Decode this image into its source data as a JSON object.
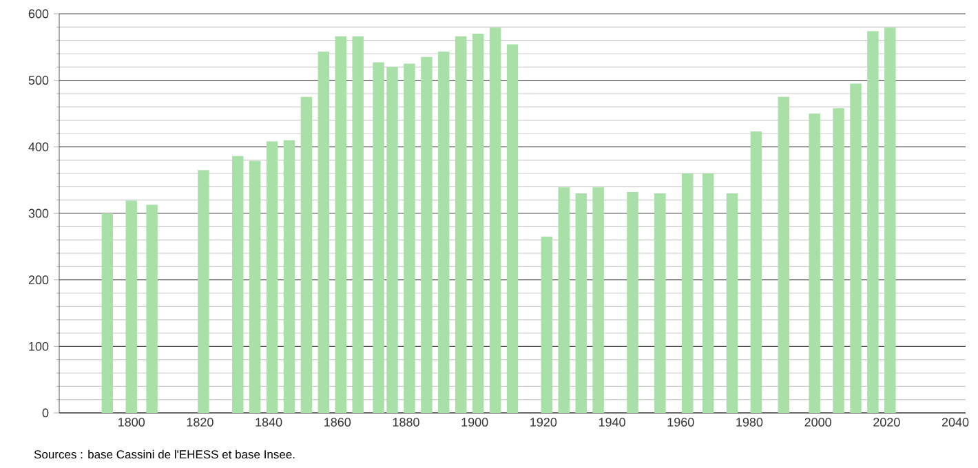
{
  "chart_data": {
    "type": "bar",
    "x": [
      1793,
      1800,
      1806,
      1821,
      1831,
      1836,
      1841,
      1846,
      1851,
      1856,
      1861,
      1866,
      1872,
      1876,
      1881,
      1886,
      1891,
      1896,
      1901,
      1906,
      1911,
      1921,
      1926,
      1931,
      1936,
      1946,
      1954,
      1962,
      1968,
      1975,
      1982,
      1990,
      1999,
      2006,
      2011,
      2016,
      2021
    ],
    "values": [
      300,
      319,
      313,
      365,
      386,
      379,
      408,
      410,
      475,
      543,
      566,
      566,
      527,
      520,
      525,
      535,
      543,
      566,
      570,
      579,
      554,
      265,
      339,
      330,
      339,
      332,
      330,
      360,
      360,
      330,
      423,
      475,
      450,
      458,
      495,
      574,
      579
    ],
    "color": "#a8e0a8",
    "xlim": [
      1779,
      2043
    ],
    "xticks": [
      1800,
      1820,
      1840,
      1860,
      1880,
      1900,
      1920,
      1940,
      1960,
      1980,
      2000,
      2020,
      2040
    ],
    "ylim": [
      0,
      600
    ],
    "yticks": [
      0,
      100,
      200,
      300,
      400,
      500,
      600
    ],
    "grid": "y",
    "annotations": [
      "Sources : base Cassini de l'EHESS et base Insee."
    ]
  }
}
